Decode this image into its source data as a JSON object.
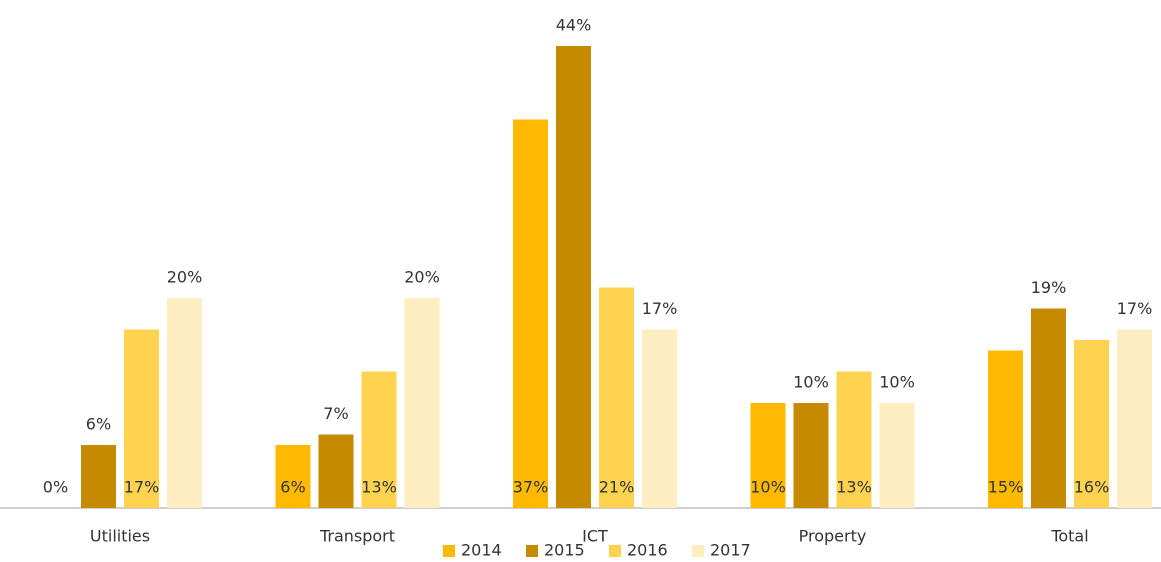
{
  "chart_data": {
    "type": "bar",
    "categories": [
      "Utilities",
      "Transport",
      "ICT",
      "Property",
      "Total"
    ],
    "series": [
      {
        "name": "2014",
        "color": "#ffb900",
        "values": [
          0,
          6,
          37,
          10,
          15
        ],
        "value_labels": [
          "0%",
          "6%",
          "37%",
          "10%",
          "15%"
        ]
      },
      {
        "name": "2015",
        "color": "#c68a00",
        "values": [
          6,
          7,
          44,
          10,
          19
        ],
        "value_labels": [
          "6%",
          "7%",
          "44%",
          "10%",
          "19%"
        ]
      },
      {
        "name": "2016",
        "color": "#ffd34f",
        "values": [
          17,
          13,
          21,
          13,
          16
        ],
        "value_labels": [
          "17%",
          "13%",
          "21%",
          "13%",
          "16%"
        ]
      },
      {
        "name": "2017",
        "color": "#ffedc2",
        "values": [
          20,
          20,
          17,
          10,
          17
        ],
        "value_labels": [
          "20%",
          "20%",
          "17%",
          "10%",
          "17%"
        ]
      }
    ]
  }
}
